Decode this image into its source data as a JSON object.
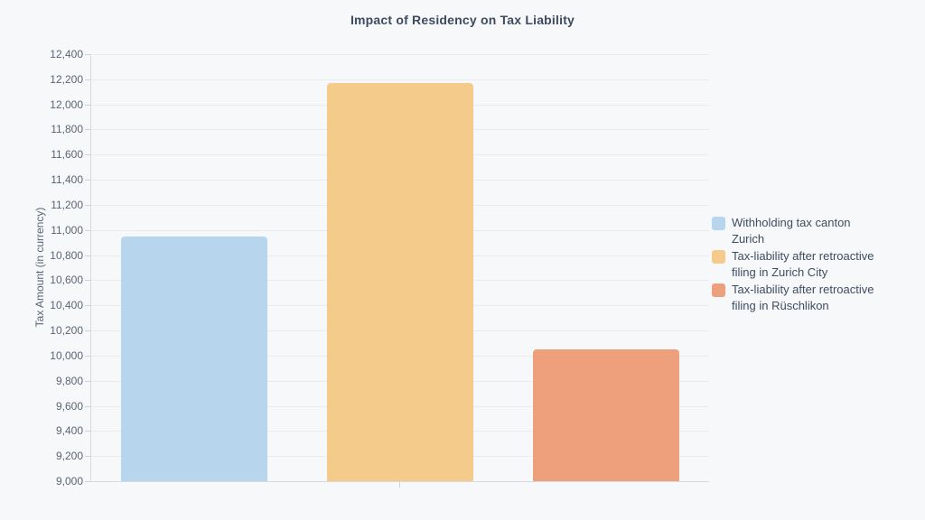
{
  "chart_data": {
    "type": "bar",
    "title": "Impact of Residency on Tax Liability",
    "xlabel": "",
    "ylabel": "Tax Amount (in currency)",
    "categories": [
      ""
    ],
    "series": [
      {
        "name": "Withholding tax canton Zurich",
        "name_lines": [
          "Withholding tax canton",
          "Zurich"
        ],
        "values": [
          10950
        ],
        "color": "#b7d5ed"
      },
      {
        "name": "Tax-liability after retroactive filing in Zurich City",
        "name_lines": [
          "Tax-liability after retroactive",
          "filing in Zurich City"
        ],
        "values": [
          12170
        ],
        "color": "#f5cb8c"
      },
      {
        "name": "Tax-liability after retroactive filing in Rüschlikon",
        "name_lines": [
          "Tax-liability after retroactive",
          "filing in Rüschlikon"
        ],
        "values": [
          10050
        ],
        "color": "#eea07d"
      }
    ],
    "ylim": [
      9000,
      12400
    ],
    "ytick_step": 200,
    "yticks": [
      9000,
      9200,
      9400,
      9600,
      9800,
      10000,
      10200,
      10400,
      10600,
      10800,
      11000,
      11200,
      11400,
      11600,
      11800,
      12000,
      12200,
      12400
    ],
    "grid": true,
    "legend_position": "right"
  },
  "colors": {
    "background": "#f7f8fa",
    "gridline": "#e9ebf0",
    "axis_line": "#d7dade",
    "tick_mark": "#cfd3d9",
    "title_text": "#3d4a5f",
    "tick_text": "#5a6477",
    "legend_text": "#3e4c63"
  }
}
